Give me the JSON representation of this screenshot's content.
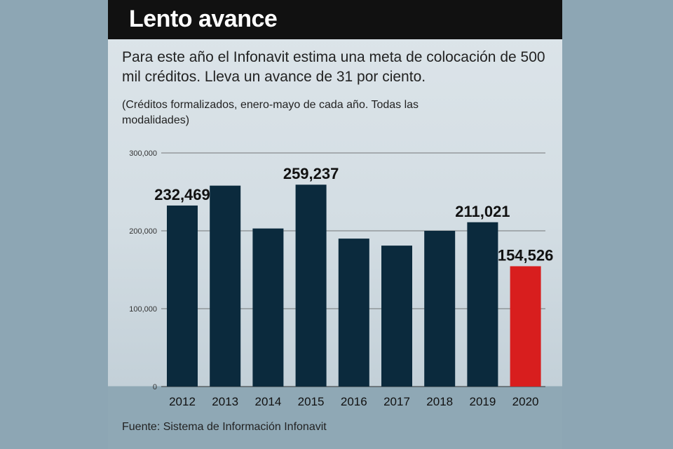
{
  "header": {
    "title": "Lento avance"
  },
  "description": "Para este año el Infonavit estima una meta de colocación de 500 mil créditos. Lleva un avance de 31 por ciento.",
  "note": "(Créditos formalizados, enero-mayo de cada año. Todas las modalidades)",
  "source": "Fuente: Sistema de Información Infonavit",
  "colors": {
    "bar": "#0b2a3d",
    "highlight": "#d81e1e",
    "title_bg": "#111111"
  },
  "chart_data": {
    "type": "bar",
    "title": "Lento avance",
    "xlabel": "",
    "ylabel": "",
    "ylim": [
      0,
      300000
    ],
    "yticks": [
      0,
      100000,
      200000,
      300000
    ],
    "ytick_labels": [
      "0",
      "100,000",
      "200,000",
      "300,000"
    ],
    "categories": [
      "2012",
      "2013",
      "2014",
      "2015",
      "2016",
      "2017",
      "2018",
      "2019",
      "2020"
    ],
    "values": [
      232469,
      258000,
      203000,
      259237,
      190000,
      181000,
      200000,
      211021,
      154526
    ],
    "labels": [
      "232,469",
      "",
      "",
      "259,237",
      "",
      "",
      "",
      "211,021",
      "154,526"
    ],
    "highlight_index": 8,
    "grid": true
  }
}
